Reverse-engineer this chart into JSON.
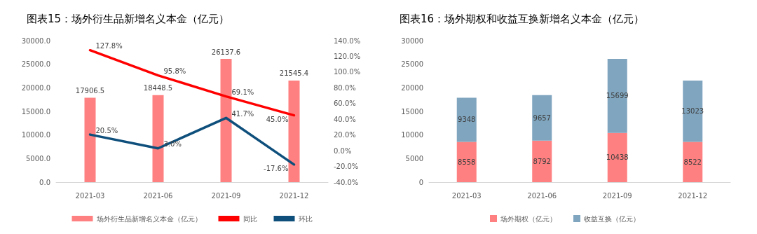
{
  "chart_data": [
    {
      "type": "bar",
      "title": "图表15：场外衍生品新增名义本金（亿元）",
      "categories": [
        "2021-03",
        "2021-06",
        "2021-09",
        "2021-12"
      ],
      "series": [
        {
          "name": "场外衍生品新增名义本金（亿元）",
          "type": "bar",
          "color": "#ff8080",
          "values": [
            17906.5,
            18448.5,
            26137.6,
            21545.4
          ],
          "value_labels": [
            "17906.5",
            "18448.5",
            "26137.6",
            "21545.4"
          ]
        },
        {
          "name": "同比",
          "type": "line",
          "axis": "y2",
          "color": "#ff0000",
          "values": [
            127.8,
            95.8,
            69.1,
            45.0
          ],
          "value_labels": [
            "127.8%",
            "95.8%",
            "69.1%",
            "45.0%"
          ]
        },
        {
          "name": "环比",
          "type": "line",
          "axis": "y2",
          "color": "#0e4f7c",
          "values": [
            20.5,
            3.0,
            41.7,
            -17.6
          ],
          "value_labels": [
            "20.5%",
            "3.0%",
            "41.7%",
            "-17.6%"
          ]
        }
      ],
      "ylim": [
        0,
        30000
      ],
      "yticks": [
        {
          "value": 0,
          "label": "0.0"
        },
        {
          "value": 5000,
          "label": "5000.0"
        },
        {
          "value": 10000,
          "label": "10000.0"
        },
        {
          "value": 15000,
          "label": "15000.0"
        },
        {
          "value": 20000,
          "label": "20000.0"
        },
        {
          "value": 25000,
          "label": "25000.0"
        },
        {
          "value": 30000,
          "label": "30000.0"
        }
      ],
      "y2lim": [
        -40,
        140
      ],
      "y2ticks": [
        {
          "value": -40,
          "label": "-40.0%"
        },
        {
          "value": -20,
          "label": "-20.0%"
        },
        {
          "value": 0,
          "label": "0.0%"
        },
        {
          "value": 20,
          "label": "20.0%"
        },
        {
          "value": 40,
          "label": "40.0%"
        },
        {
          "value": 60,
          "label": "60.0%"
        },
        {
          "value": 80,
          "label": "80.0%"
        },
        {
          "value": 100,
          "label": "100.0%"
        },
        {
          "value": 120,
          "label": "120.0%"
        },
        {
          "value": 140,
          "label": "140.0%"
        }
      ],
      "legend": "bottom",
      "grid": false,
      "marker": "none"
    },
    {
      "type": "bar",
      "title": "图表16：场外期权和收益互换新增名义本金（亿元）",
      "categories": [
        "2021-03",
        "2021-06",
        "2021-09",
        "2021-12"
      ],
      "stacked": true,
      "data_labels": true,
      "series": [
        {
          "name": "场外期权（亿元）",
          "color": "#ff8080",
          "values": [
            8558,
            8792,
            10438,
            8522
          ]
        },
        {
          "name": "收益互换（亿元）",
          "color": "#7fa5bf",
          "values": [
            9348,
            9657,
            15699,
            13023
          ]
        }
      ],
      "ylim": [
        0,
        30000
      ],
      "yticks": [
        0,
        5000,
        10000,
        15000,
        20000,
        25000,
        30000
      ],
      "legend": "bottom",
      "grid": false
    }
  ]
}
